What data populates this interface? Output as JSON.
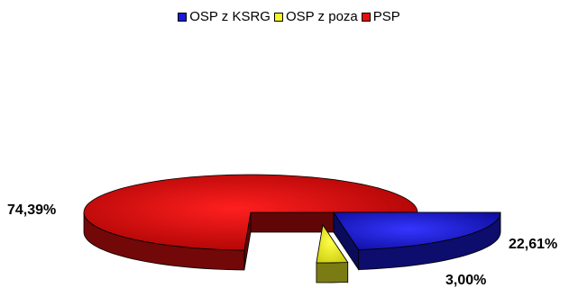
{
  "chart_data": {
    "type": "pie",
    "style": "3d-exploded",
    "title": "",
    "legend_position": "top",
    "slices": [
      {
        "name": "OSP z KSRG",
        "value": 22.61,
        "label": "22,61%",
        "color": "#1a1adc"
      },
      {
        "name": "OSP z poza",
        "value": 3.0,
        "label": "3,00%",
        "color": "#f5f528"
      },
      {
        "name": "PSP",
        "value": 74.39,
        "label": "74,39%",
        "color": "#e60f0f"
      }
    ]
  }
}
